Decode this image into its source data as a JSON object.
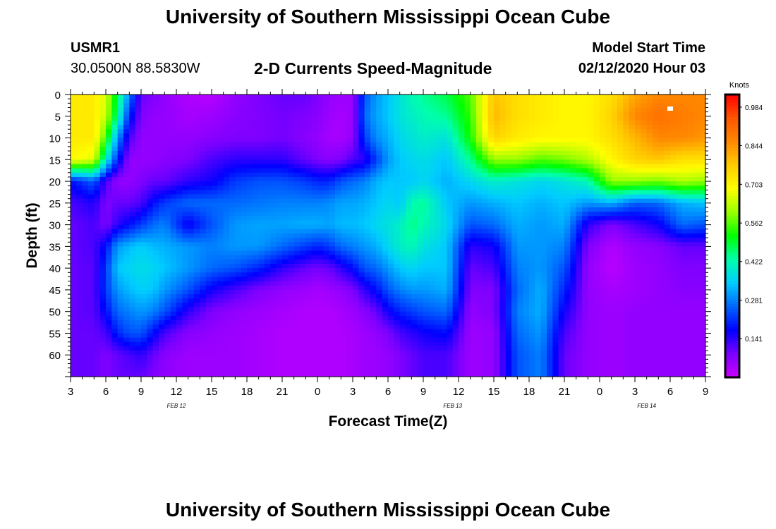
{
  "header": {
    "title": "University of Southern Mississippi Ocean Cube",
    "station_id": "USMR1",
    "coords": "30.0500N 88.5830W",
    "subtitle": "2-D Currents Speed-Magnitude",
    "model_start_label": "Model Start Time",
    "model_start_value": "02/12/2020 Hour 03"
  },
  "footer": {
    "title": "University of Southern Mississippi Ocean Cube"
  },
  "chart_data": {
    "type": "heatmap",
    "xlabel": "Forecast Time(Z)",
    "ylabel": "Depth (ft)",
    "x_tick_labels": [
      "3",
      "6",
      "9",
      "12",
      "15",
      "18",
      "21",
      "0",
      "3",
      "6",
      "9",
      "12",
      "15",
      "18",
      "21",
      "0",
      "3",
      "6",
      "9"
    ],
    "x_range_hours": [
      0,
      54
    ],
    "date_labels": [
      {
        "text": "FEB 12",
        "hour": 9
      },
      {
        "text": "FEB 13",
        "hour": 32.5
      },
      {
        "text": "FEB 14",
        "hour": 49
      }
    ],
    "y_tick_labels": [
      "0",
      "5",
      "10",
      "15",
      "20",
      "25",
      "30",
      "35",
      "40",
      "45",
      "50",
      "55",
      "60"
    ],
    "ylim": [
      0,
      65
    ],
    "y_inverted": true,
    "colorbar": {
      "unit": "Knots",
      "ticks": [
        "0.984",
        "0.844",
        "0.703",
        "0.562",
        "0.422",
        "0.281",
        "0.141"
      ],
      "range": [
        0,
        1.03
      ],
      "colors": [
        "#cc00ff",
        "#7a00ff",
        "#0000ff",
        "#0066ff",
        "#00ccff",
        "#00ffaa",
        "#00ff00",
        "#99ff00",
        "#ffff00",
        "#ffcc00",
        "#ff8800",
        "#ff5500",
        "#ff0000"
      ]
    },
    "speed_grid": {
      "hours": [
        0,
        2,
        3,
        4,
        5,
        6,
        7,
        8,
        10,
        12,
        14,
        16,
        18,
        20,
        21,
        22,
        23,
        24,
        25,
        26,
        27,
        28,
        29,
        30,
        32,
        34,
        36,
        38,
        40,
        42,
        44,
        46,
        48,
        50,
        52,
        54
      ],
      "depths": [
        0,
        5,
        10,
        15,
        20,
        25,
        30,
        35,
        40,
        45,
        50,
        55,
        60,
        65
      ],
      "values": [
        [
          0.72,
          0.72,
          0.72,
          0.7,
          0.18,
          0.12,
          0.1,
          0.1,
          0.1,
          0.1,
          0.1,
          0.1,
          0.1,
          0.1
        ],
        [
          0.72,
          0.72,
          0.72,
          0.66,
          0.25,
          0.15,
          0.12,
          0.12,
          0.11,
          0.11,
          0.11,
          0.1,
          0.1,
          0.1
        ],
        [
          0.65,
          0.64,
          0.55,
          0.4,
          0.12,
          0.08,
          0.08,
          0.18,
          0.22,
          0.22,
          0.18,
          0.12,
          0.08,
          0.08
        ],
        [
          0.48,
          0.44,
          0.3,
          0.2,
          0.06,
          0.1,
          0.14,
          0.3,
          0.34,
          0.3,
          0.26,
          0.2,
          0.1,
          0.1
        ],
        [
          0.28,
          0.2,
          0.12,
          0.06,
          0.06,
          0.1,
          0.18,
          0.33,
          0.36,
          0.33,
          0.28,
          0.24,
          0.12,
          0.1
        ],
        [
          0.1,
          0.08,
          0.06,
          0.06,
          0.08,
          0.12,
          0.22,
          0.35,
          0.37,
          0.35,
          0.3,
          0.24,
          0.14,
          0.1
        ],
        [
          0.08,
          0.06,
          0.06,
          0.06,
          0.1,
          0.18,
          0.26,
          0.33,
          0.36,
          0.34,
          0.28,
          0.18,
          0.1,
          0.08
        ],
        [
          0.06,
          0.06,
          0.06,
          0.07,
          0.1,
          0.22,
          0.28,
          0.32,
          0.34,
          0.3,
          0.24,
          0.12,
          0.07,
          0.06
        ],
        [
          0.03,
          0.04,
          0.06,
          0.08,
          0.14,
          0.26,
          0.16,
          0.3,
          0.3,
          0.24,
          0.14,
          0.07,
          0.05,
          0.05
        ],
        [
          0.02,
          0.05,
          0.07,
          0.12,
          0.16,
          0.26,
          0.24,
          0.28,
          0.26,
          0.16,
          0.08,
          0.06,
          0.05,
          0.05
        ],
        [
          0.06,
          0.07,
          0.08,
          0.14,
          0.22,
          0.26,
          0.3,
          0.3,
          0.24,
          0.12,
          0.06,
          0.05,
          0.05,
          0.05
        ],
        [
          0.08,
          0.08,
          0.08,
          0.14,
          0.24,
          0.27,
          0.31,
          0.3,
          0.2,
          0.08,
          0.05,
          0.04,
          0.04,
          0.04
        ],
        [
          0.1,
          0.09,
          0.09,
          0.14,
          0.24,
          0.28,
          0.31,
          0.26,
          0.14,
          0.06,
          0.04,
          0.03,
          0.03,
          0.03
        ],
        [
          0.1,
          0.08,
          0.07,
          0.1,
          0.22,
          0.28,
          0.32,
          0.22,
          0.1,
          0.05,
          0.03,
          0.03,
          0.03,
          0.03
        ],
        [
          0.08,
          0.07,
          0.06,
          0.08,
          0.2,
          0.28,
          0.32,
          0.2,
          0.09,
          0.04,
          0.03,
          0.03,
          0.03,
          0.03
        ],
        [
          0.06,
          0.05,
          0.04,
          0.07,
          0.2,
          0.29,
          0.31,
          0.22,
          0.1,
          0.05,
          0.03,
          0.03,
          0.03,
          0.03
        ],
        [
          0.05,
          0.04,
          0.04,
          0.08,
          0.24,
          0.31,
          0.33,
          0.26,
          0.14,
          0.06,
          0.04,
          0.03,
          0.03,
          0.03
        ],
        [
          0.05,
          0.05,
          0.06,
          0.12,
          0.26,
          0.31,
          0.33,
          0.28,
          0.18,
          0.08,
          0.05,
          0.04,
          0.04,
          0.04
        ],
        [
          0.24,
          0.26,
          0.22,
          0.14,
          0.28,
          0.32,
          0.34,
          0.3,
          0.24,
          0.14,
          0.07,
          0.05,
          0.05,
          0.05
        ],
        [
          0.3,
          0.31,
          0.29,
          0.22,
          0.32,
          0.34,
          0.36,
          0.32,
          0.26,
          0.18,
          0.1,
          0.06,
          0.05,
          0.05
        ],
        [
          0.34,
          0.34,
          0.32,
          0.3,
          0.34,
          0.36,
          0.38,
          0.36,
          0.3,
          0.24,
          0.16,
          0.08,
          0.06,
          0.06
        ],
        [
          0.38,
          0.38,
          0.36,
          0.34,
          0.34,
          0.34,
          0.4,
          0.4,
          0.34,
          0.28,
          0.2,
          0.12,
          0.08,
          0.08
        ],
        [
          0.42,
          0.4,
          0.38,
          0.36,
          0.34,
          0.42,
          0.45,
          0.42,
          0.36,
          0.3,
          0.22,
          0.14,
          0.1,
          0.1
        ],
        [
          0.44,
          0.42,
          0.4,
          0.37,
          0.36,
          0.44,
          0.42,
          0.38,
          0.34,
          0.3,
          0.24,
          0.16,
          0.12,
          0.12
        ],
        [
          0.48,
          0.44,
          0.38,
          0.34,
          0.32,
          0.34,
          0.36,
          0.34,
          0.34,
          0.32,
          0.26,
          0.18,
          0.12,
          0.12
        ],
        [
          0.56,
          0.54,
          0.52,
          0.44,
          0.36,
          0.3,
          0.24,
          0.14,
          0.1,
          0.08,
          0.06,
          0.05,
          0.05,
          0.05
        ],
        [
          0.78,
          0.8,
          0.76,
          0.6,
          0.4,
          0.32,
          0.26,
          0.16,
          0.12,
          0.08,
          0.08,
          0.06,
          0.06,
          0.06
        ],
        [
          0.74,
          0.74,
          0.72,
          0.6,
          0.38,
          0.34,
          0.32,
          0.3,
          0.28,
          0.26,
          0.28,
          0.26,
          0.24,
          0.24
        ],
        [
          0.72,
          0.72,
          0.7,
          0.56,
          0.36,
          0.32,
          0.3,
          0.3,
          0.3,
          0.32,
          0.32,
          0.3,
          0.28,
          0.28
        ],
        [
          0.7,
          0.7,
          0.7,
          0.58,
          0.38,
          0.34,
          0.32,
          0.28,
          0.24,
          0.2,
          0.16,
          0.12,
          0.1,
          0.1
        ],
        [
          0.7,
          0.7,
          0.7,
          0.62,
          0.42,
          0.3,
          0.14,
          0.08,
          0.06,
          0.06,
          0.06,
          0.06,
          0.06,
          0.06
        ],
        [
          0.74,
          0.76,
          0.74,
          0.7,
          0.6,
          0.32,
          0.08,
          0.03,
          0.02,
          0.04,
          0.05,
          0.05,
          0.05,
          0.05
        ],
        [
          0.82,
          0.86,
          0.8,
          0.76,
          0.6,
          0.25,
          0.12,
          0.06,
          0.05,
          0.05,
          0.06,
          0.06,
          0.06,
          0.06
        ],
        [
          0.86,
          0.9,
          0.86,
          0.78,
          0.58,
          0.26,
          0.16,
          0.07,
          0.06,
          0.06,
          0.06,
          0.06,
          0.06,
          0.06
        ],
        [
          0.86,
          0.88,
          0.86,
          0.74,
          0.62,
          0.32,
          0.26,
          0.1,
          0.08,
          0.07,
          0.06,
          0.06,
          0.06,
          0.06
        ],
        [
          0.86,
          0.86,
          0.84,
          0.74,
          0.6,
          0.34,
          0.24,
          0.1,
          0.08,
          0.07,
          0.06,
          0.06,
          0.06,
          0.06
        ]
      ]
    }
  }
}
